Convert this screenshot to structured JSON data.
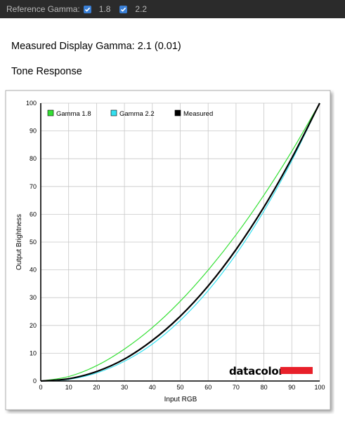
{
  "topbar": {
    "label": "Reference Gamma:",
    "options": [
      {
        "label": "1.8",
        "checked": true
      },
      {
        "label": "2.2",
        "checked": true
      }
    ]
  },
  "measured_text": "Measured Display Gamma: 2.1 (0.01)",
  "section_title": "Tone Response",
  "logo_text": "datacolor",
  "colors": {
    "gamma18": "#33e033",
    "gamma22": "#33e0f0",
    "measured": "#000000",
    "logo_bar": "#e8202a",
    "checkbox": "#3a7fd5"
  },
  "chart_data": {
    "type": "line",
    "xlabel": "Input RGB",
    "ylabel": "Output Brightness",
    "xlim": [
      0,
      100
    ],
    "ylim": [
      0,
      100
    ],
    "xticks": [
      0,
      10,
      20,
      30,
      40,
      50,
      60,
      70,
      80,
      90,
      100
    ],
    "yticks": [
      0,
      10,
      20,
      30,
      40,
      50,
      60,
      70,
      80,
      90,
      100
    ],
    "grid": true,
    "legend_position": "top-left",
    "x": [
      0,
      10,
      20,
      30,
      40,
      50,
      60,
      70,
      80,
      90,
      100
    ],
    "series": [
      {
        "name": "Gamma 1.8",
        "color": "#33e033",
        "values": [
          0,
          1.6,
          5.5,
          11.5,
          19.2,
          28.7,
          39.9,
          52.6,
          66.9,
          82.7,
          100
        ]
      },
      {
        "name": "Gamma 2.2",
        "color": "#33e0f0",
        "values": [
          0,
          0.6,
          2.9,
          7.1,
          13.3,
          21.8,
          32.5,
          45.6,
          61.2,
          79.3,
          100
        ]
      },
      {
        "name": "Measured",
        "color": "#000000",
        "values": [
          0,
          0.8,
          3.4,
          7.9,
          14.6,
          23.3,
          34.2,
          47.3,
          62.6,
          80.2,
          100
        ]
      }
    ]
  }
}
